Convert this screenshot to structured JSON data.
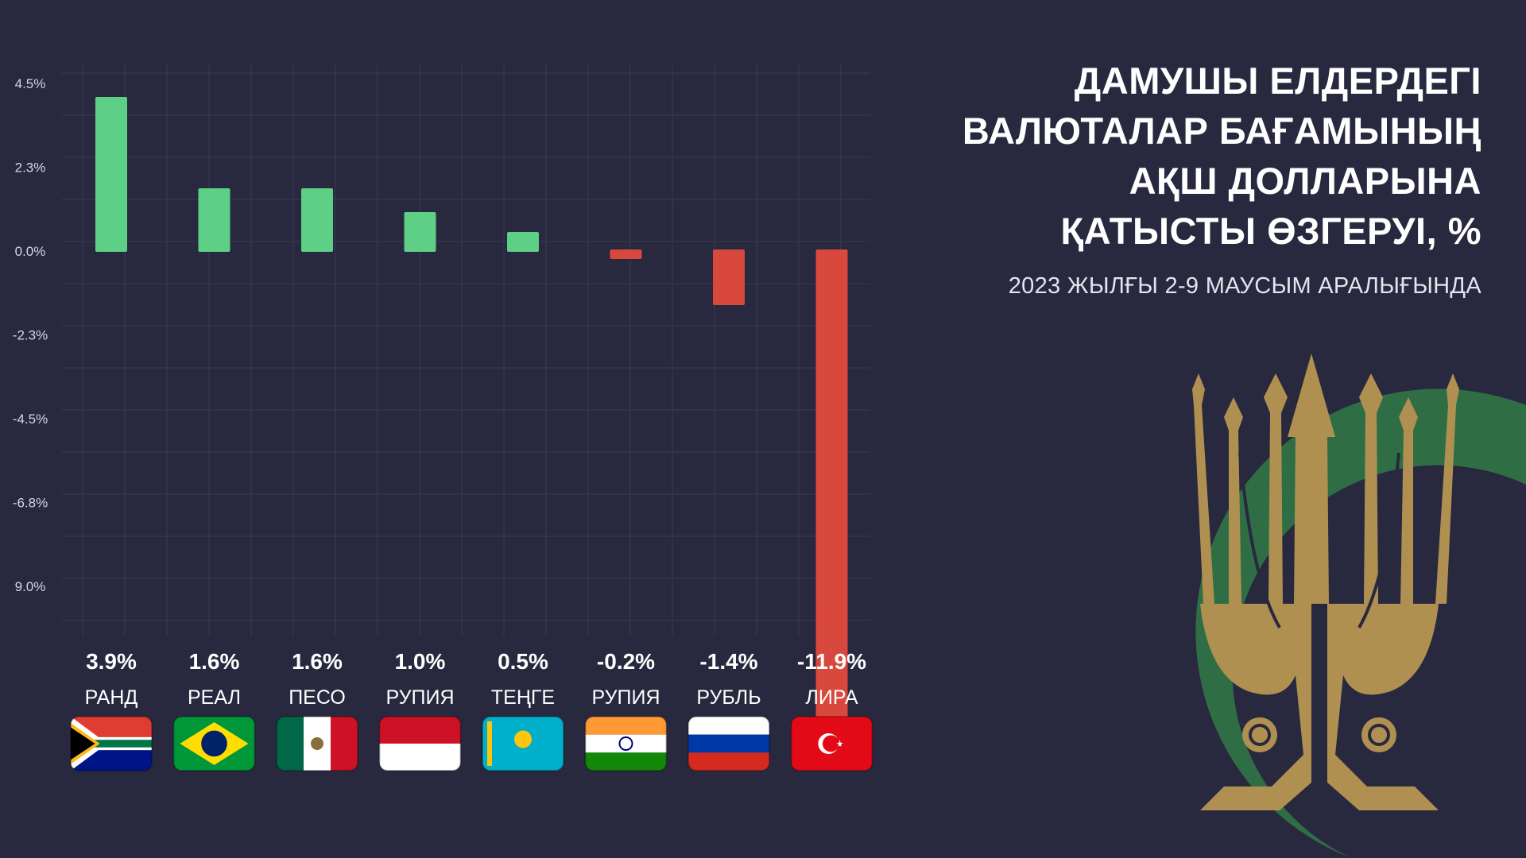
{
  "title_lines": [
    "ДАМУШЫ ЕЛДЕРДЕГІ",
    "ВАЛЮТАЛАР БАҒАМЫНЫҢ",
    "АҚШ ДОЛЛАРЫНА",
    "ҚАТЫСТЫ ӨЗГЕРУІ, %"
  ],
  "subtitle": "2023 ЖЫЛҒЫ 2-9 МАУСЫМ АРАЛЫҒЫНДА",
  "chart_data": {
    "type": "bar",
    "title": "ДАМУШЫ ЕЛДЕРДЕГІ ВАЛЮТАЛАР БАҒАМЫНЫҢ АҚШ ДОЛЛАРЫНА ҚАТЫСТЫ ӨЗГЕРУІ, %",
    "subtitle": "2023 ЖЫЛҒЫ 2-9 МАУСЫМ АРАЛЫҒЫНДА",
    "categories": [
      "РАНД",
      "РЕАЛ",
      "ПЕСО",
      "РУПИЯ",
      "ТЕҢГЕ",
      "РУПИЯ",
      "РУБЛЬ",
      "ЛИРА"
    ],
    "values": [
      3.9,
      1.6,
      1.6,
      1.0,
      0.5,
      -0.2,
      -1.4,
      -11.9
    ],
    "value_labels": [
      "3.9%",
      "1.6%",
      "1.6%",
      "1.0%",
      "0.5%",
      "-0.2%",
      "-1.4%",
      "-11.9%"
    ],
    "y_tick_labels": [
      "4.5%",
      "2.3%",
      "0.0%",
      "-2.3%",
      "-4.5%",
      "-6.8%",
      "9.0%"
    ],
    "positive_color": "#5ecf86",
    "negative_color": "#d9483c",
    "grid": true,
    "flags": [
      "south-africa",
      "brazil",
      "mexico",
      "indonesia",
      "kazakhstan",
      "india",
      "russia",
      "turkey"
    ]
  },
  "colors": {
    "background": "#28283f",
    "grid": "#3a3a55",
    "logo_green": "#2f6e45",
    "logo_gold": "#b09050"
  }
}
